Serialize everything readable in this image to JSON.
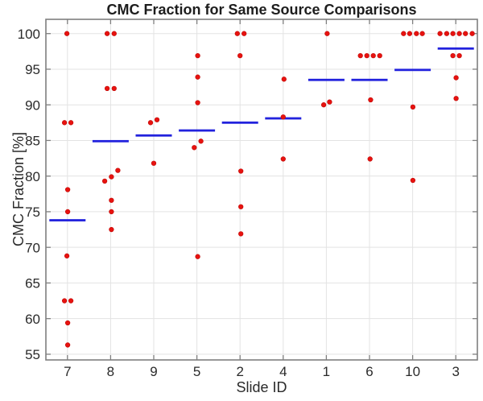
{
  "chart_data": {
    "type": "scatter",
    "title": "CMC Fraction for Same Source Comparisons",
    "xlabel": "Slide ID",
    "ylabel": "CMC Fraction [%]",
    "x_categories": [
      "7",
      "8",
      "9",
      "5",
      "2",
      "4",
      "1",
      "6",
      "10",
      "3"
    ],
    "y_ticks": [
      55,
      60,
      65,
      70,
      75,
      80,
      85,
      90,
      95,
      100
    ],
    "ylim": [
      54.2,
      102.0
    ],
    "grid": true,
    "legend_position": "none",
    "series_description": "red dots = CMC fraction of individual same-source comparisons; blue horizontal segment = mean CMC fraction per slide",
    "groups": [
      {
        "slide": "7",
        "mean": 73.8,
        "points": [
          {
            "v": 100,
            "dx": -0.7
          },
          {
            "v": 87.5,
            "dx": -3.7
          },
          {
            "v": 87.5,
            "dx": 4.3
          },
          {
            "v": 78.1,
            "dx": 0.3
          },
          {
            "v": 75.0,
            "dx": 0.3
          },
          {
            "v": 68.8,
            "dx": -0.7
          },
          {
            "v": 62.5,
            "dx": -3.7
          },
          {
            "v": 62.5,
            "dx": 4.3
          },
          {
            "v": 59.4,
            "dx": 0.3
          },
          {
            "v": 56.3,
            "dx": 0.3
          }
        ]
      },
      {
        "slide": "8",
        "mean": 84.9,
        "points": [
          {
            "v": 100,
            "dx": -4.3
          },
          {
            "v": 100,
            "dx": 4.4
          },
          {
            "v": 92.3,
            "dx": -4.3
          },
          {
            "v": 92.3,
            "dx": 4.4
          },
          {
            "v": 80.8,
            "dx": 9.0
          },
          {
            "v": 79.9,
            "dx": 1.0
          },
          {
            "v": 79.3,
            "dx": -7.3
          },
          {
            "v": 76.6,
            "dx": 1.0
          },
          {
            "v": 75.0,
            "dx": 1.0
          },
          {
            "v": 72.5,
            "dx": 1.0
          }
        ]
      },
      {
        "slide": "9",
        "mean": 85.7,
        "points": [
          {
            "v": 87.9,
            "dx": 4.0
          },
          {
            "v": 87.5,
            "dx": -4.0
          },
          {
            "v": 81.8,
            "dx": 0.0
          }
        ]
      },
      {
        "slide": "5",
        "mean": 86.4,
        "points": [
          {
            "v": 96.9,
            "dx": 1.0
          },
          {
            "v": 93.9,
            "dx": 1.0
          },
          {
            "v": 90.3,
            "dx": 1.0
          },
          {
            "v": 84.9,
            "dx": 5.0
          },
          {
            "v": 84.0,
            "dx": -3.3
          },
          {
            "v": 68.7,
            "dx": 1.0
          }
        ]
      },
      {
        "slide": "2",
        "mean": 87.5,
        "points": [
          {
            "v": 100,
            "dx": -3.4
          },
          {
            "v": 100,
            "dx": 5.0
          },
          {
            "v": 96.9,
            "dx": 0.0
          },
          {
            "v": 80.7,
            "dx": 1.0
          },
          {
            "v": 75.7,
            "dx": 1.0
          },
          {
            "v": 71.9,
            "dx": 1.0
          }
        ]
      },
      {
        "slide": "4",
        "mean": 88.1,
        "points": [
          {
            "v": 93.6,
            "dx": 1.0
          },
          {
            "v": 88.3,
            "dx": 0.0
          },
          {
            "v": 82.4,
            "dx": 0.0
          }
        ]
      },
      {
        "slide": "1",
        "mean": 93.5,
        "points": [
          {
            "v": 100,
            "dx": 1.0
          },
          {
            "v": 90.4,
            "dx": 4.0
          },
          {
            "v": 90.0,
            "dx": -3.3
          }
        ]
      },
      {
        "slide": "6",
        "mean": 93.5,
        "points": [
          {
            "v": 96.9,
            "dx": -11.3
          },
          {
            "v": 96.9,
            "dx": -3.3
          },
          {
            "v": 96.9,
            "dx": 4.7
          },
          {
            "v": 96.9,
            "dx": 12.7
          },
          {
            "v": 90.7,
            "dx": 1.4
          },
          {
            "v": 82.4,
            "dx": 0.7
          }
        ]
      },
      {
        "slide": "10",
        "mean": 94.9,
        "points": [
          {
            "v": 100,
            "dx": -11.3
          },
          {
            "v": 100,
            "dx": -3.7
          },
          {
            "v": 100,
            "dx": 4.7
          },
          {
            "v": 100,
            "dx": 12.0
          },
          {
            "v": 89.7,
            "dx": 0.3
          },
          {
            "v": 79.4,
            "dx": 0.3
          }
        ]
      },
      {
        "slide": "3",
        "mean": 97.9,
        "points": [
          {
            "v": 100,
            "dx": -19.6
          },
          {
            "v": 100,
            "dx": -11.3
          },
          {
            "v": 100,
            "dx": -3.6
          },
          {
            "v": 100,
            "dx": 4.4
          },
          {
            "v": 100,
            "dx": 12.0
          },
          {
            "v": 100,
            "dx": 20.4
          },
          {
            "v": 96.9,
            "dx": -3.6
          },
          {
            "v": 96.9,
            "dx": 4.4
          },
          {
            "v": 93.8,
            "dx": 0.4
          },
          {
            "v": 90.9,
            "dx": 0.4
          }
        ]
      }
    ],
    "colors": {
      "marker": "#e8120f",
      "marker_edge": "#c40d0b",
      "mean_line": "#2222dd",
      "grid": "#e3e3e3",
      "axis_box": "#7f7f7f",
      "tick_text": "#2a2a2a",
      "background": "#ffffff"
    }
  }
}
